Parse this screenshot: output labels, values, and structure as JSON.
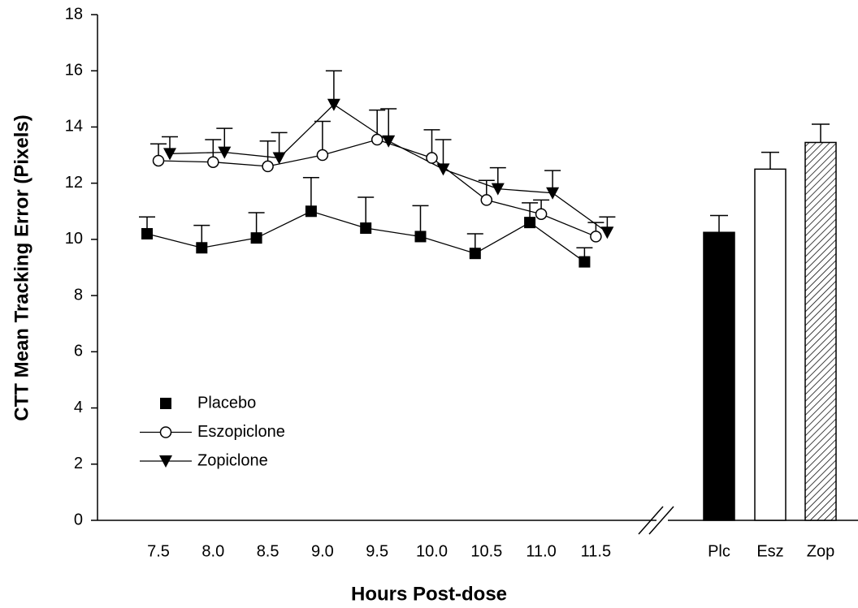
{
  "chart_data": [
    {
      "type": "line",
      "y_label": "CTT Mean Tracking Error (Pixels)",
      "x_label": "Hours Post-dose",
      "categories": [
        "7.5",
        "8.0",
        "8.5",
        "9.0",
        "9.5",
        "10.0",
        "10.5",
        "11.0",
        "11.5"
      ],
      "ylim": [
        0,
        18
      ],
      "yticks": [
        0,
        2,
        4,
        6,
        8,
        10,
        12,
        14,
        16,
        18
      ],
      "legend": "lower-left",
      "series": [
        {
          "name": "Placebo",
          "color": "#000000",
          "marker": "square",
          "values": [
            10.2,
            9.7,
            10.05,
            11.0,
            10.4,
            10.1,
            9.5,
            10.6,
            9.2
          ],
          "errors": [
            0.6,
            0.8,
            0.9,
            1.2,
            1.1,
            1.1,
            0.7,
            0.7,
            0.5
          ]
        },
        {
          "name": "Eszopiclone",
          "color": "#000000",
          "marker": "circle",
          "values": [
            12.8,
            12.75,
            12.6,
            13.0,
            13.55,
            12.9,
            11.4,
            10.9,
            10.1
          ],
          "errors": [
            0.6,
            0.8,
            0.9,
            1.2,
            1.05,
            1.0,
            0.7,
            0.5,
            0.5
          ]
        },
        {
          "name": "Zopiclone",
          "color": "#000000",
          "marker": "triangle-down",
          "values": [
            13.05,
            13.1,
            12.9,
            14.8,
            13.5,
            12.5,
            11.8,
            11.65,
            10.25
          ],
          "errors": [
            0.6,
            0.85,
            0.9,
            1.2,
            1.15,
            1.05,
            0.75,
            0.8,
            0.55
          ]
        }
      ]
    },
    {
      "type": "bar",
      "categories": [
        "Plc",
        "Esz",
        "Zop"
      ],
      "values": [
        10.25,
        12.5,
        13.45
      ],
      "errors": [
        0.6,
        0.6,
        0.65
      ],
      "colors": [
        "#000000",
        "#ffffff",
        "#000000"
      ],
      "patterns": [
        "solid",
        "solid",
        "hatch"
      ],
      "ylim": [
        0,
        18
      ]
    }
  ]
}
